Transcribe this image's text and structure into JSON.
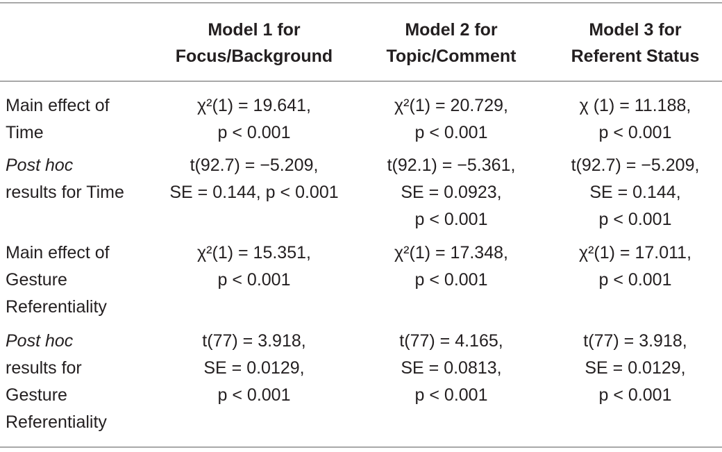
{
  "header": {
    "col1": [
      "Model 1 for",
      "Focus/Background"
    ],
    "col2": [
      "Model 2 for",
      "Topic/Comment"
    ],
    "col3": [
      "Model 3 for",
      "Referent Status"
    ]
  },
  "rows": [
    {
      "label": [
        "Main effect of",
        "Time"
      ],
      "col1": [
        "χ²(1) = 19.641,",
        "p < 0.001"
      ],
      "col2": [
        "χ²(1) = 20.729,",
        "p < 0.001"
      ],
      "col3": [
        "χ (1) = 11.188,",
        "p < 0.001"
      ]
    },
    {
      "label": [
        "Post hoc",
        "results for Time"
      ],
      "col1": [
        "t(92.7) = −5.209,",
        "SE = 0.144, p < 0.001"
      ],
      "col2": [
        "t(92.1) = −5.361,",
        "SE = 0.0923,",
        "p < 0.001"
      ],
      "col3": [
        "t(92.7) = −5.209,",
        "SE = 0.144,",
        "p < 0.001"
      ]
    },
    {
      "label": [
        "Main effect of",
        "Gesture",
        "Referentiality"
      ],
      "col1": [
        "χ²(1) = 15.351,",
        "p < 0.001"
      ],
      "col2": [
        "χ²(1) = 17.348,",
        "p < 0.001"
      ],
      "col3": [
        "χ²(1) = 17.011,",
        "p < 0.001"
      ]
    },
    {
      "label": [
        "Post hoc",
        "results for",
        "Gesture",
        "Referentiality"
      ],
      "col1": [
        "t(77) = 3.918,",
        "SE = 0.0129,",
        "p < 0.001"
      ],
      "col2": [
        "t(77) = 4.165,",
        "SE = 0.0813,",
        "p < 0.001"
      ],
      "col3": [
        "t(77) = 3.918,",
        "SE = 0.0129,",
        "p < 0.001"
      ]
    }
  ]
}
